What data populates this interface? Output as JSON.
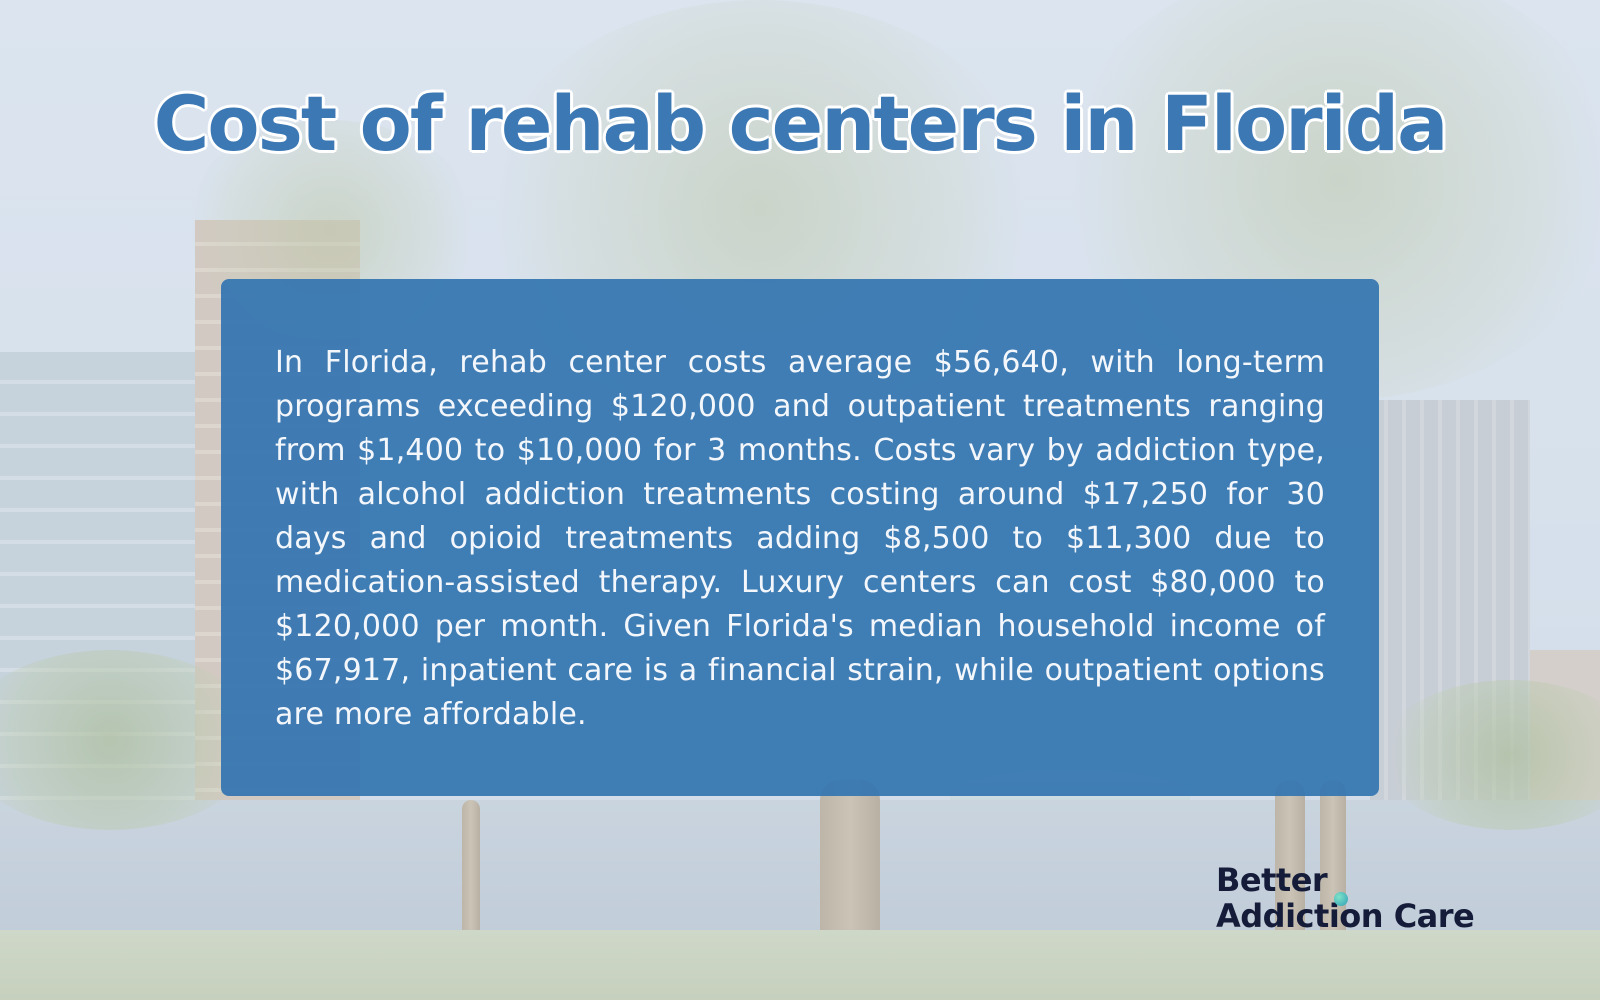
{
  "title": "Cost of rehab centers in Florida",
  "card": {
    "text": "In Florida, rehab center costs average $56,640, with long-term programs exceeding $120,000 and outpatient treatments ranging from $1,400 to $10,000 for 3 months. Costs vary by addiction type, with alcohol addiction treatments costing around $17,250 for 30 days and opioid treatments adding $8,500 to $11,300 due to medication-assisted therapy. Luxury centers can cost $80,000 to $120,000 per month. Given Florida's median household income of $67,917, inpatient care is a financial strain, while outpatient options are more affordable."
  },
  "logo": {
    "line1": "Better",
    "line2": "Addiction Care"
  },
  "colors": {
    "title": "#3b78b4",
    "card_background": "#3475b0",
    "logo_text": "#141c3a",
    "logo_accent": "#2f9fb7"
  }
}
